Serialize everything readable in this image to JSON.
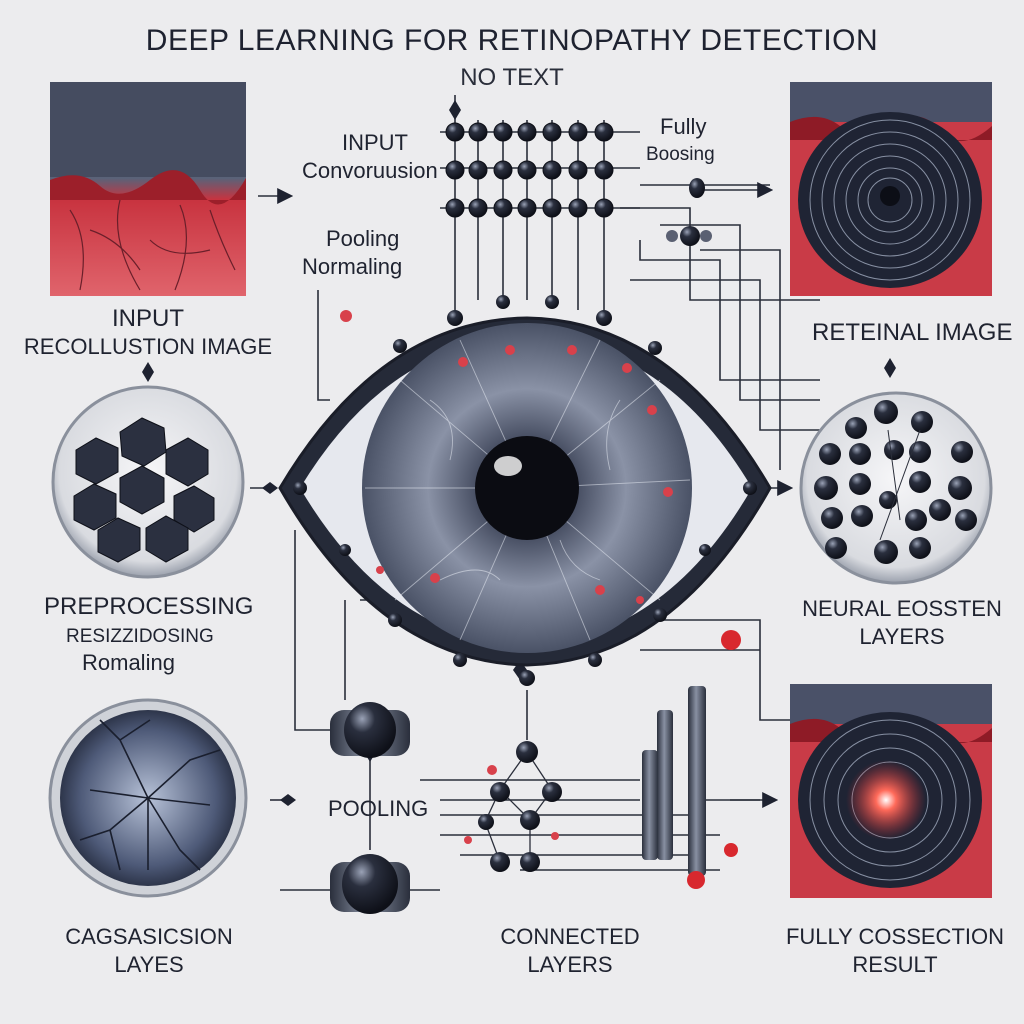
{
  "title": "DEEP LEARNING FOR RETINOPATHY DETECTION",
  "subtitle": "NO TEXT",
  "labels": {
    "input": "INPUT",
    "convolution": "Convoruusion",
    "fully": "Fully",
    "boosing": "Boosing",
    "pooling": "Pooling",
    "normaling": "Normaling",
    "input_heading": "INPUT",
    "input_image": "RECOLLUSTION IMAGE",
    "retinal_image": "RETEINAL IMAGE",
    "preprocessing": "PREPROCESSING",
    "resizing": "RESIZZIDOSING",
    "romaling": "Romaling",
    "neural_layers_1": "NEURAL EOSSTEN",
    "neural_layers_2": "LAYERS",
    "pooling_bottom": "POOLING",
    "classification_1": "CAGSASICSION",
    "classification_2": "LAYES",
    "connected_1": "CONNECTED",
    "connected_2": "LAYERS",
    "fully_connection_1": "FULLY COSSECTION",
    "fully_connection_2": "RESULT"
  },
  "colors": {
    "background": "#ececee",
    "retina_red": "#d8414b",
    "node_dark": "#1e2230",
    "accent_red": "#d8282e",
    "steel": "#4a5162"
  }
}
